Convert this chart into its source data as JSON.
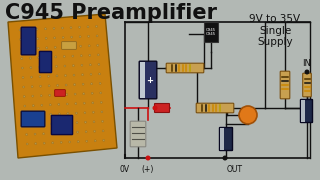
{
  "bg_color": "#b2b8b4",
  "title": "C945 Preamplifier",
  "title_color": "#111111",
  "title_fontsize": 15,
  "supply_text": "9V to 35V\nSingle\nSupply",
  "supply_color": "#111111",
  "supply_fontsize": 7.5,
  "label_0v": "0V",
  "label_plus": "(+)",
  "label_out": "OUT",
  "label_in": "IN",
  "pcb_color": "#c88010",
  "pcb_hole_color": "#b89848",
  "wire_color": "#111111",
  "wire_red_color": "#cc1111",
  "resistor_body": "#c8a050",
  "resistor_stripe": "#333300",
  "elec_cap_color": "#2a3060",
  "elec_cap2_color": "#202840",
  "transistor_color": "#111111",
  "orange_cap_color": "#e07818",
  "small_elec_color": "#1e2848",
  "diode_color": "#cc2222",
  "emitter_res_color": "#c0c0b0"
}
